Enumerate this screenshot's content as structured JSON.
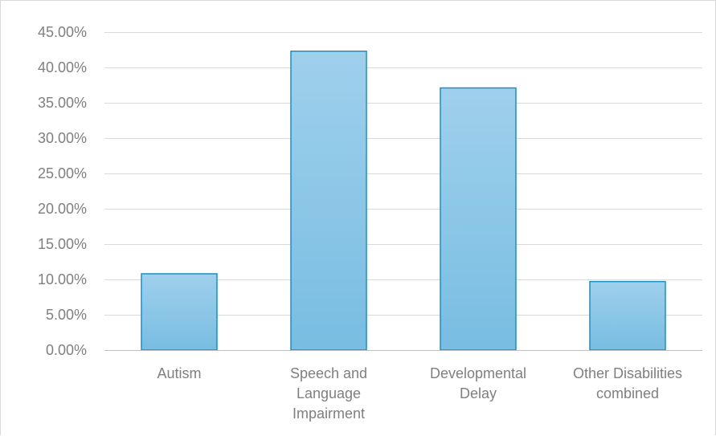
{
  "chart_data": {
    "type": "bar",
    "title": "",
    "xlabel": "",
    "ylabel": "",
    "categories": [
      [
        "Autism"
      ],
      [
        "Speech and",
        "Language",
        "Impairment"
      ],
      [
        "Developmental",
        "Delay"
      ],
      [
        "Other Disabilities",
        "combined"
      ]
    ],
    "values": [
      10.8,
      42.3,
      37.1,
      9.7
    ],
    "unit": "%",
    "ylim": [
      0,
      45
    ],
    "yticks": [
      0,
      5,
      10,
      15,
      20,
      25,
      30,
      35,
      40,
      45
    ],
    "ytick_labels": [
      "0.00%",
      "5.00%",
      "10.00%",
      "15.00%",
      "20.00%",
      "25.00%",
      "30.00%",
      "35.00%",
      "40.00%",
      "45.00%"
    ],
    "grid": true,
    "legend": "none",
    "colors": {
      "bar_top": "#9fd0ec",
      "bar_bottom": "#78bde2",
      "bar_stroke": "#1b8fc2"
    }
  }
}
